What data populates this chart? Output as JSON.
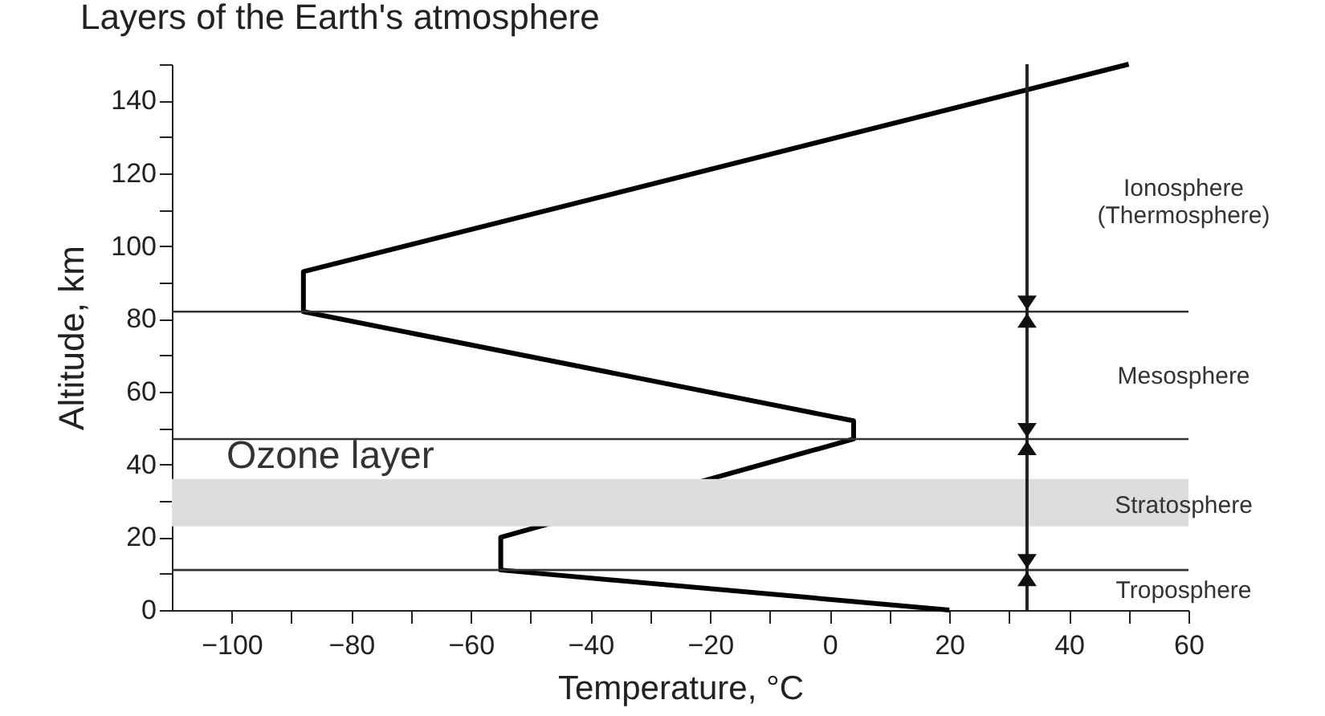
{
  "chart_data": {
    "type": "line",
    "title": "Layers of the Earth's atmosphere",
    "xlabel": "Temperature, °C",
    "ylabel": "Altitude, km",
    "series": [
      {
        "color": "#000000",
        "x": [
          20,
          -55,
          -55,
          4,
          4,
          -88,
          -88,
          50
        ],
        "values": [
          0,
          11,
          20,
          47,
          52,
          82,
          93,
          150
        ]
      }
    ],
    "xlim": [
      -110,
      60
    ],
    "xticks": [
      -100,
      {
        "value": -90,
        "label": null
      },
      -80,
      {
        "value": -70,
        "label": null
      },
      -60,
      {
        "value": -50,
        "label": null
      },
      -40,
      {
        "value": -30,
        "label": null
      },
      -20,
      {
        "value": -10,
        "label": null
      },
      0,
      {
        "value": 10,
        "label": null
      },
      20,
      {
        "value": 30,
        "label": null
      },
      40,
      {
        "value": 50,
        "label": null
      },
      60
    ],
    "ylim": [
      0,
      150
    ],
    "yticks": [
      0,
      {
        "value": 10,
        "label": null
      },
      20,
      {
        "value": 30,
        "label": null
      },
      40,
      {
        "value": 50,
        "label": null
      },
      60,
      {
        "value": 70,
        "label": null
      },
      80,
      {
        "value": 90,
        "label": null
      },
      100,
      {
        "value": 110,
        "label": null
      },
      120,
      {
        "value": 130,
        "label": null
      },
      140,
      {
        "value": 150,
        "label": null
      }
    ],
    "ref_lines": [
      {
        "axis": "y",
        "value": 11,
        "color": "#333333"
      },
      {
        "axis": "y",
        "value": 47,
        "color": "#333333"
      },
      {
        "axis": "y",
        "value": 82,
        "color": "#333333"
      },
      {
        "axis": "x",
        "value": 33,
        "color": "#222222"
      }
    ],
    "bands": [
      {
        "axis": "y",
        "from": 23,
        "to": 36,
        "color": "#dddddd",
        "label": "Ozone layer"
      }
    ],
    "annotations": [
      "Ionosphere\n(Thermosphere)",
      "Mesosphere",
      "Stratosphere",
      "Troposphere"
    ],
    "grid": false,
    "marker": "none",
    "line_style": "solid"
  }
}
